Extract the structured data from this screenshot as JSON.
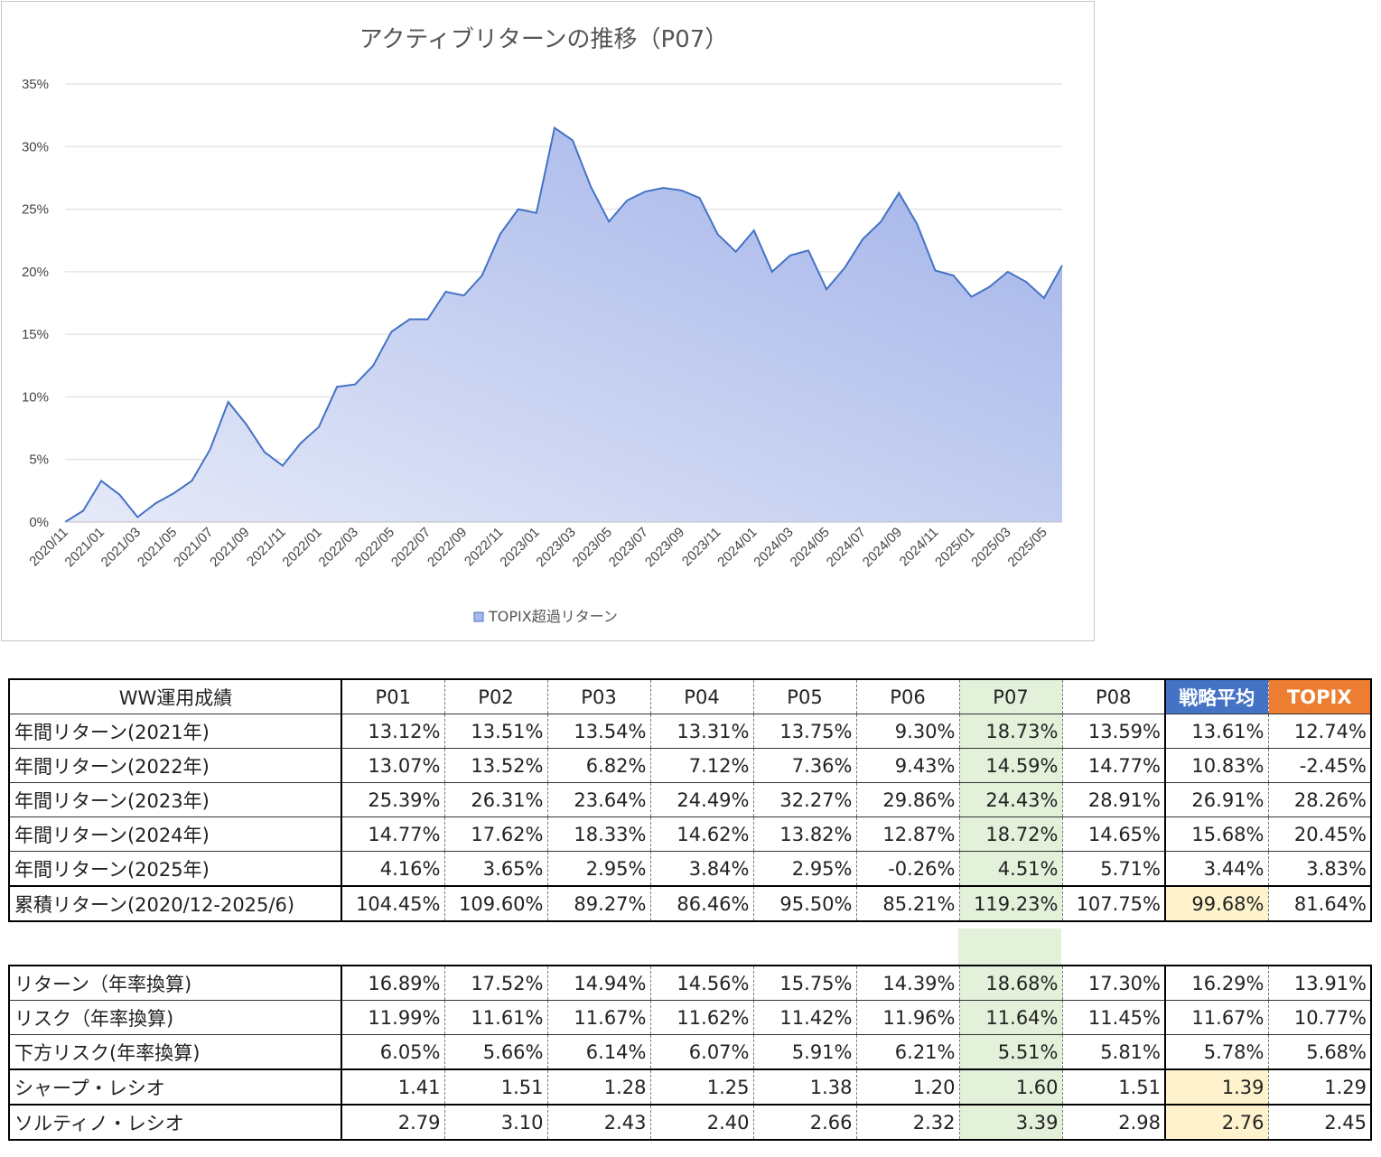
{
  "chart_data": {
    "type": "area",
    "title": "アクティブリターンの推移（P07）",
    "legend": "TOPIX超過リターン",
    "legend_position": "bottom",
    "grid": true,
    "ylim": [
      0,
      35
    ],
    "yticks": [
      "0%",
      "5%",
      "10%",
      "15%",
      "20%",
      "25%",
      "30%",
      "35%"
    ],
    "xticks": [
      "2020/11",
      "2021/01",
      "2021/03",
      "2021/05",
      "2021/07",
      "2021/09",
      "2021/11",
      "2022/01",
      "2022/03",
      "2022/05",
      "2022/07",
      "2022/09",
      "2022/11",
      "2023/01",
      "2023/03",
      "2023/05",
      "2023/07",
      "2023/09",
      "2023/11",
      "2024/01",
      "2024/03",
      "2024/05",
      "2024/07",
      "2024/09",
      "2024/11",
      "2025/01",
      "2025/03",
      "2025/05"
    ],
    "x": [
      "2020/11",
      "2020/12",
      "2021/01",
      "2021/02",
      "2021/03",
      "2021/04",
      "2021/05",
      "2021/06",
      "2021/07",
      "2021/08",
      "2021/09",
      "2021/10",
      "2021/11",
      "2021/12",
      "2022/01",
      "2022/02",
      "2022/03",
      "2022/04",
      "2022/05",
      "2022/06",
      "2022/07",
      "2022/08",
      "2022/09",
      "2022/10",
      "2022/11",
      "2022/12",
      "2023/01",
      "2023/02",
      "2023/03",
      "2023/04",
      "2023/05",
      "2023/06",
      "2023/07",
      "2023/08",
      "2023/09",
      "2023/10",
      "2023/11",
      "2023/12",
      "2024/01",
      "2024/02",
      "2024/03",
      "2024/04",
      "2024/05",
      "2024/06",
      "2024/07",
      "2024/08",
      "2024/09",
      "2024/10",
      "2024/11",
      "2024/12",
      "2025/01",
      "2025/02",
      "2025/03",
      "2025/04",
      "2025/05",
      "2025/06"
    ],
    "values": [
      0.0,
      0.9,
      3.3,
      2.2,
      0.4,
      1.5,
      2.3,
      3.3,
      5.8,
      9.6,
      7.8,
      5.6,
      4.5,
      6.3,
      7.6,
      10.8,
      11.0,
      12.5,
      15.2,
      16.2,
      16.2,
      18.4,
      18.1,
      19.7,
      23.0,
      25.0,
      24.7,
      31.5,
      30.5,
      26.8,
      24.0,
      25.7,
      26.4,
      26.7,
      26.5,
      25.9,
      23.0,
      21.6,
      23.3,
      20.0,
      21.3,
      21.7,
      18.6,
      20.3,
      22.6,
      24.0,
      26.3,
      23.8,
      20.1,
      19.7,
      18.0,
      18.8,
      20.0,
      19.2,
      17.9,
      20.5
    ],
    "colors": {
      "line": "#4472c4",
      "fill_light": "#e6eaf8",
      "fill_dark": "#9fb0e8",
      "grid": "#d9d9d9"
    }
  },
  "table1": {
    "header": [
      "WW運用成績",
      "P01",
      "P02",
      "P03",
      "P04",
      "P05",
      "P06",
      "P07",
      "P08",
      "戦略平均",
      "TOPIX"
    ],
    "rows": [
      {
        "label": "年間リターン(2021年)",
        "values": [
          "13.12%",
          "13.51%",
          "13.54%",
          "13.31%",
          "13.75%",
          "9.30%",
          "18.73%",
          "13.59%",
          "13.61%",
          "12.74%"
        ]
      },
      {
        "label": "年間リターン(2022年)",
        "values": [
          "13.07%",
          "13.52%",
          "6.82%",
          "7.12%",
          "7.36%",
          "9.43%",
          "14.59%",
          "14.77%",
          "10.83%",
          "-2.45%"
        ]
      },
      {
        "label": "年間リターン(2023年)",
        "values": [
          "25.39%",
          "26.31%",
          "23.64%",
          "24.49%",
          "32.27%",
          "29.86%",
          "24.43%",
          "28.91%",
          "26.91%",
          "28.26%"
        ]
      },
      {
        "label": "年間リターン(2024年)",
        "values": [
          "14.77%",
          "17.62%",
          "18.33%",
          "14.62%",
          "13.82%",
          "12.87%",
          "18.72%",
          "14.65%",
          "15.68%",
          "20.45%"
        ]
      },
      {
        "label": "年間リターン(2025年)",
        "values": [
          "4.16%",
          "3.65%",
          "2.95%",
          "3.84%",
          "2.95%",
          "-0.26%",
          "4.51%",
          "5.71%",
          "3.44%",
          "3.83%"
        ]
      },
      {
        "label": "累積リターン(2020/12-2025/6)",
        "values": [
          "104.45%",
          "109.60%",
          "89.27%",
          "86.46%",
          "95.50%",
          "85.21%",
          "119.23%",
          "107.75%",
          "99.68%",
          "81.64%"
        ]
      }
    ]
  },
  "table2": {
    "rows": [
      {
        "label": "リターン（年率換算)",
        "values": [
          "16.89%",
          "17.52%",
          "14.94%",
          "14.56%",
          "15.75%",
          "14.39%",
          "18.68%",
          "17.30%",
          "16.29%",
          "13.91%"
        ]
      },
      {
        "label": "リスク（年率換算)",
        "values": [
          "11.99%",
          "11.61%",
          "11.67%",
          "11.62%",
          "11.42%",
          "11.96%",
          "11.64%",
          "11.45%",
          "11.67%",
          "10.77%"
        ]
      },
      {
        "label": "下方リスク(年率換算)",
        "values": [
          "6.05%",
          "5.66%",
          "6.14%",
          "6.07%",
          "5.91%",
          "6.21%",
          "5.51%",
          "5.81%",
          "5.78%",
          "5.68%"
        ]
      },
      {
        "label": "シャープ・レシオ",
        "values": [
          "1.41",
          "1.51",
          "1.28",
          "1.25",
          "1.38",
          "1.20",
          "1.60",
          "1.51",
          "1.39",
          "1.29"
        ]
      },
      {
        "label": "ソルティノ・レシオ",
        "values": [
          "2.79",
          "3.10",
          "2.43",
          "2.40",
          "2.66",
          "2.32",
          "3.39",
          "2.98",
          "2.76",
          "2.45"
        ]
      }
    ]
  }
}
